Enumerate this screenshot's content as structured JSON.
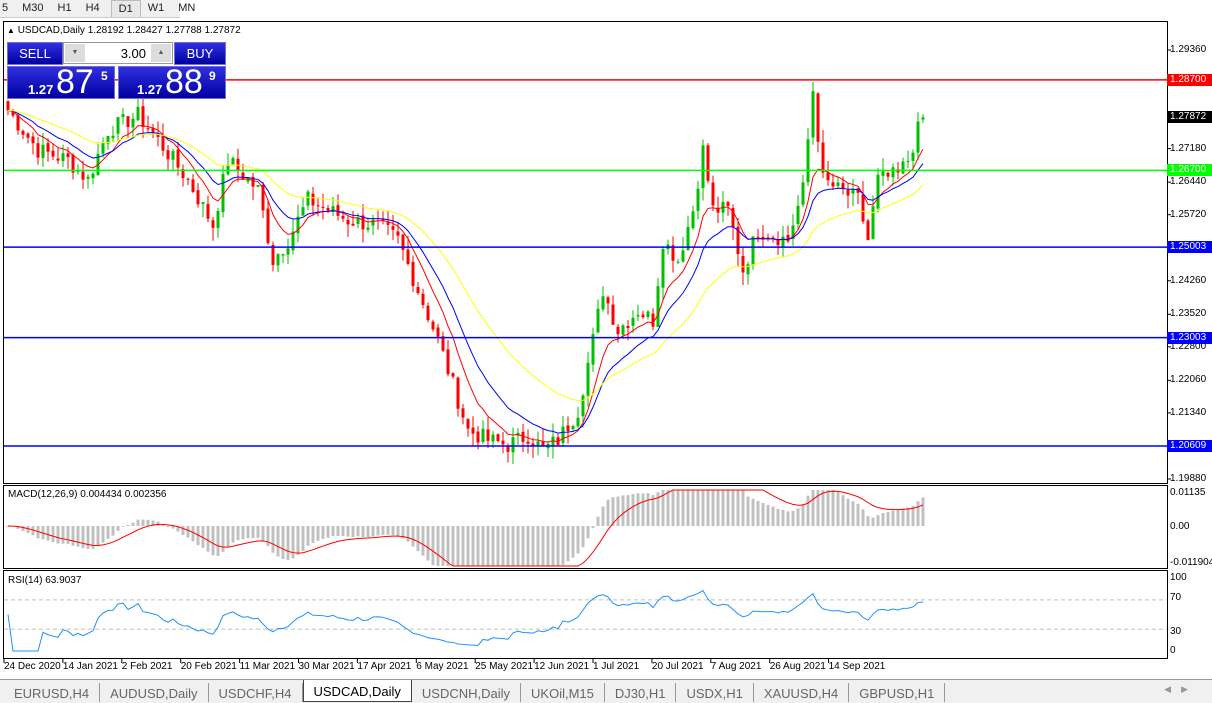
{
  "timeframes": {
    "items": [
      "5",
      "M30",
      "H1",
      "H4",
      "D1",
      "W1",
      "MN"
    ],
    "active": "D1"
  },
  "chart": {
    "header": "USDCAD,Daily  1.28192 1.28427 1.27788 1.27872",
    "symbol": "USDCAD",
    "period": "Daily",
    "ohlc": {
      "open": "1.28192",
      "high": "1.28427",
      "low": "1.27788",
      "close": "1.27872"
    },
    "price_axis": [
      "1.29360",
      "1.27180",
      "1.26440",
      "1.25720",
      "1.24260",
      "1.23520",
      "1.22800",
      "1.22060",
      "1.21340",
      "1.19880"
    ],
    "current_price": "1.27872",
    "levels": [
      {
        "label": "1.28700",
        "price": 1.287,
        "color": "#ff0000"
      },
      {
        "label": "1.26700",
        "price": 1.267,
        "color": "#00ff00"
      },
      {
        "label": "1.25003",
        "price": 1.25003,
        "color": "#0000ff"
      },
      {
        "label": "1.23003",
        "price": 1.23003,
        "color": "#0000ff"
      },
      {
        "label": "1.20609",
        "price": 1.20609,
        "color": "#0000ff"
      }
    ],
    "colors": {
      "bull": "#00c000",
      "bear": "#ff0000",
      "ma_fast": "#ff0000",
      "ma_mid": "#0000ff",
      "ma_slow": "#ffff00"
    },
    "close_path": [
      [
        0,
        1.2803
      ],
      [
        6,
        1.2715
      ],
      [
        12,
        1.2693
      ],
      [
        16,
        1.2649
      ],
      [
        20,
        1.2759
      ],
      [
        26,
        1.2792
      ],
      [
        30,
        1.2737
      ],
      [
        36,
        1.2649
      ],
      [
        41,
        1.2549
      ],
      [
        44,
        1.2693
      ],
      [
        50,
        1.2627
      ],
      [
        53,
        1.2472
      ],
      [
        56,
        1.2516
      ],
      [
        60,
        1.2605
      ],
      [
        64,
        1.2583
      ],
      [
        68,
        1.256
      ],
      [
        74,
        1.2549
      ],
      [
        78,
        1.2516
      ],
      [
        82,
        1.2406
      ],
      [
        86,
        1.2295
      ],
      [
        90,
        1.2163
      ],
      [
        92,
        1.2096
      ],
      [
        96,
        1.2074
      ],
      [
        100,
        1.2063
      ],
      [
        104,
        1.2085
      ],
      [
        107,
        1.2052
      ],
      [
        110,
        1.2074
      ],
      [
        114,
        1.214
      ],
      [
        117,
        1.2295
      ],
      [
        119,
        1.2406
      ],
      [
        122,
        1.2317
      ],
      [
        126,
        1.2361
      ],
      [
        129,
        1.2339
      ],
      [
        131,
        1.2516
      ],
      [
        134,
        1.2472
      ],
      [
        137,
        1.2583
      ],
      [
        139,
        1.2715
      ],
      [
        141,
        1.2583
      ],
      [
        144,
        1.2583
      ],
      [
        147,
        1.245
      ],
      [
        150,
        1.2538
      ],
      [
        156,
        1.2516
      ],
      [
        159,
        1.2627
      ],
      [
        161,
        1.2848
      ],
      [
        163,
        1.2649
      ],
      [
        166,
        1.2627
      ],
      [
        170,
        1.2605
      ],
      [
        172,
        1.2516
      ],
      [
        174,
        1.2649
      ],
      [
        178,
        1.266
      ],
      [
        180,
        1.2693
      ],
      [
        182,
        1.2759
      ],
      [
        183,
        1.27872
      ]
    ],
    "dates": [
      "24 Dec 2020",
      "14 Jan 2021",
      "2 Feb 2021",
      "20 Feb 2021",
      "11 Mar 2021",
      "30 Mar 2021",
      "17 Apr 2021",
      "6 May 2021",
      "25 May 2021",
      "12 Jun 2021",
      "1 Jul 2021",
      "20 Jul 2021",
      "7 Aug 2021",
      "26 Aug 2021",
      "14 Sep 2021"
    ]
  },
  "trade": {
    "sell_label": "SELL",
    "buy_label": "BUY",
    "lot": "3.00",
    "sell_big": "1.27",
    "sell_main": "87",
    "sell_sup": "5",
    "buy_big": "1.27",
    "buy_main": "88",
    "buy_sup": "9"
  },
  "macd": {
    "header": "MACD(12,26,9) 0.004434 0.002356",
    "axis": [
      "0.01135",
      "0.00",
      "-0.011904"
    ]
  },
  "rsi": {
    "header": "RSI(14) 63.9037",
    "axis": [
      "100",
      "70",
      "30",
      "0"
    ]
  },
  "tabs": {
    "items": [
      "EURUSD,H4",
      "AUDUSD,Daily",
      "USDCHF,H4",
      "USDCAD,Daily",
      "USDCNH,Daily",
      "UKOil,M15",
      "DJ30,H1",
      "USDX,H1",
      "XAUUSD,H4",
      "GBPUSD,H1"
    ],
    "active": "USDCAD,Daily"
  }
}
